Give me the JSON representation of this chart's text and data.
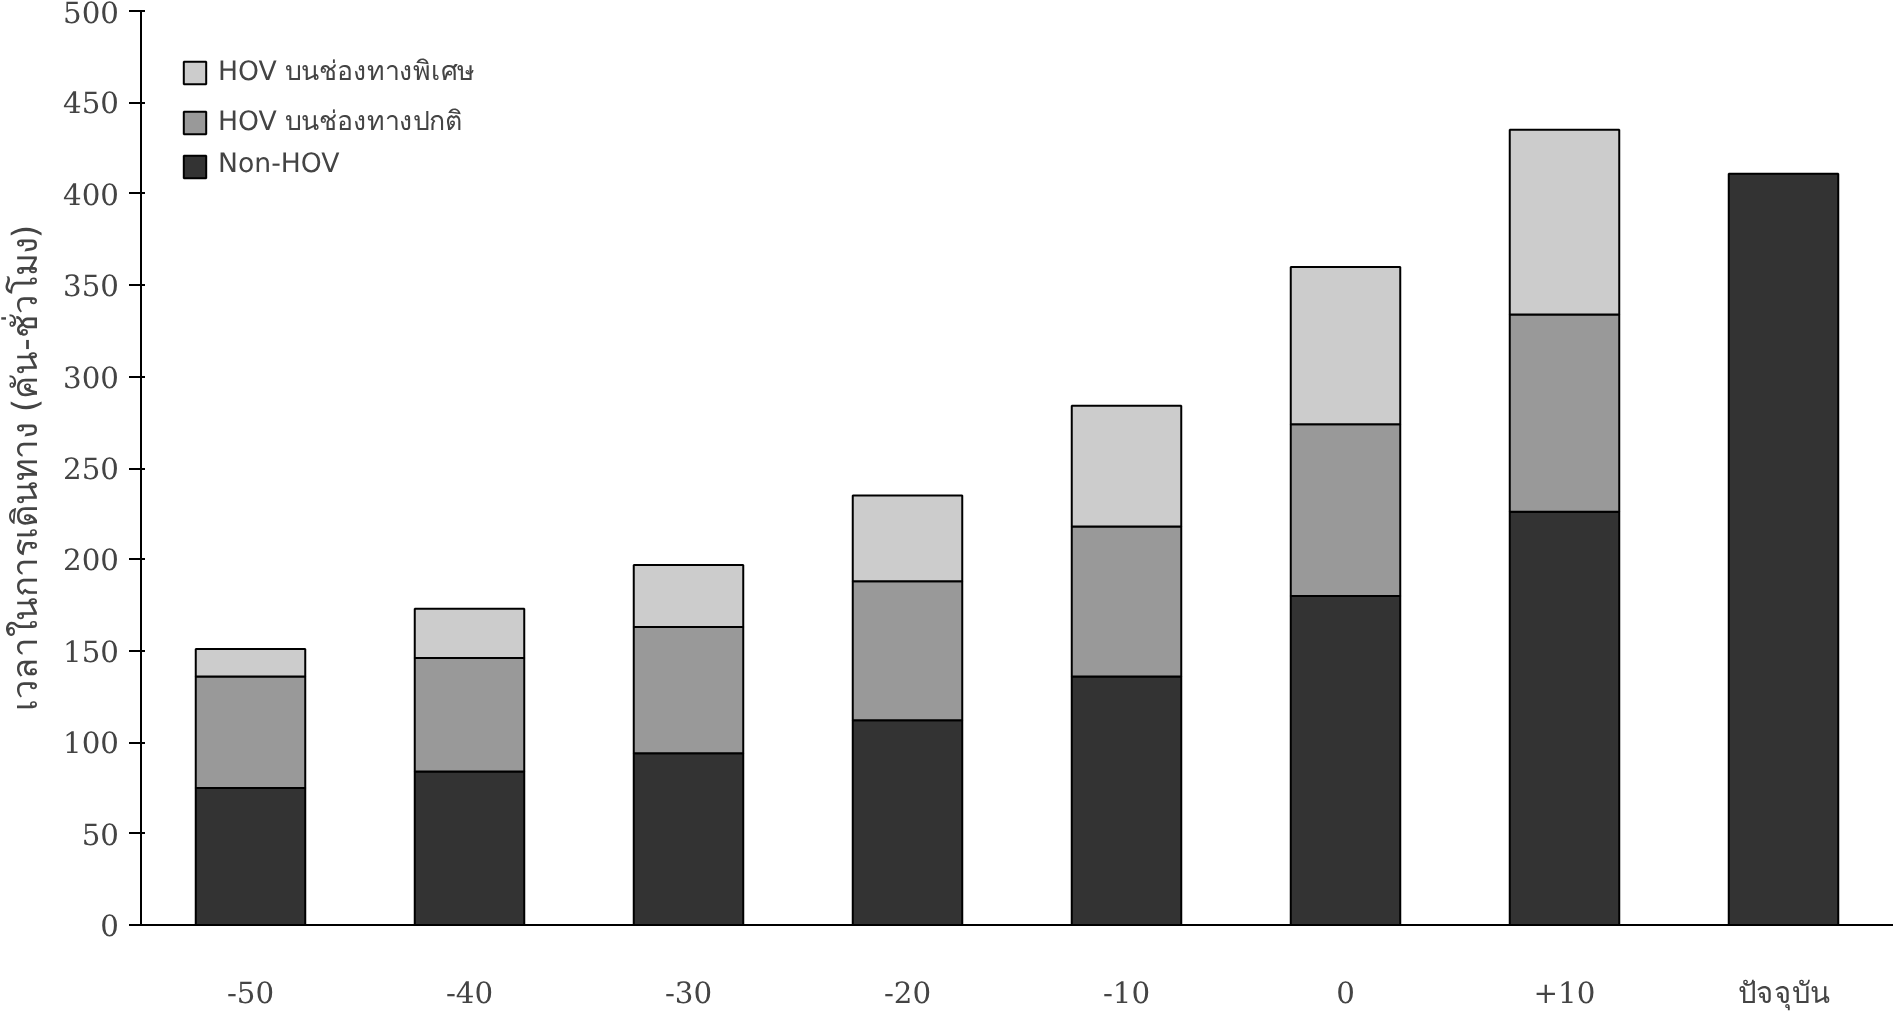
{
  "chart_data": {
    "type": "bar",
    "stacked": true,
    "ylabel": "เวลาในการเดินทาง (คัน-ชั่วโมง)",
    "categories": [
      "-50",
      "-40",
      "-30",
      "-20",
      "-10",
      "0",
      "+10",
      "ปัจจุบัน"
    ],
    "series": [
      {
        "name": "Non-HOV",
        "color": "#333333",
        "values": [
          75,
          84,
          94,
          112,
          136,
          180,
          226,
          411
        ]
      },
      {
        "name": "HOV บนช่องทางปกติ",
        "color": "#999999",
        "values": [
          61,
          62,
          69,
          76,
          82,
          94,
          108,
          null
        ]
      },
      {
        "name": "HOV บนช่องทางพิเศษ",
        "color": "#cccccc",
        "values": [
          15,
          27,
          34,
          47,
          66,
          86,
          101,
          null
        ]
      }
    ],
    "ylim": [
      0,
      500
    ],
    "yticks": [
      0,
      50,
      100,
      150,
      200,
      250,
      300,
      350,
      400,
      450,
      500
    ],
    "grid": false,
    "legend": "top left"
  }
}
